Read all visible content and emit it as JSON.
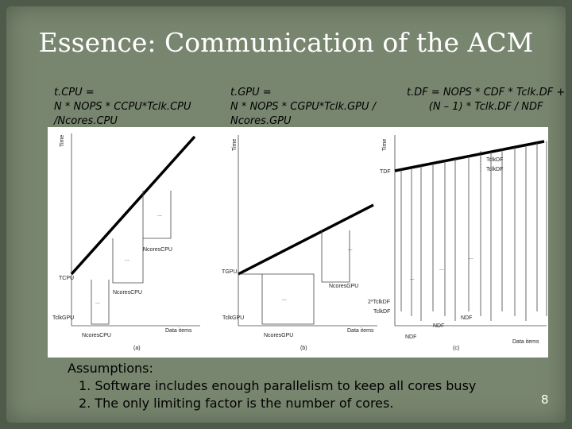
{
  "title": "Essence: Communication of the ACM",
  "formulas": [
    {
      "lines": [
        "t.CPU =",
        "N * NOPS * CCPU*Tclk.CPU",
        "/Ncores.CPU"
      ]
    },
    {
      "lines": [
        "t.GPU =",
        "N * NOPS * CGPU*Tclk.GPU /",
        "Ncores.GPU"
      ]
    },
    {
      "lines": [
        "t.DF =  NOPS * CDF * Tclk.DF +",
        "(N – 1) * Tclk.DF / NDF"
      ]
    }
  ],
  "figure": {
    "panels": [
      {
        "time": "Time",
        "x_axis": "Data items",
        "caption": "(a)",
        "t_label": "TCPU",
        "clk_label": "TclkGPU",
        "n_label": "NcoresCPU",
        "dots": "..."
      },
      {
        "time": "Time",
        "x_axis": "Data items",
        "caption": "(b)",
        "t_label": "TGPU",
        "clk_label": "TclkGPU",
        "n_label": "NcoresGPU",
        "dots": "..."
      },
      {
        "time": "Time",
        "x_axis": "Data items",
        "caption": "(c)",
        "t_label": "TDF",
        "clk_label": "TclkDF",
        "two_clk_label": "2*TclkDF",
        "n_label": "NDF",
        "dots": "..."
      }
    ]
  },
  "assumptions": {
    "heading": "Assumptions:",
    "items": [
      "1. Software includes enough parallelism to keep all cores busy",
      "2. The only limiting factor is the number of cores."
    ]
  },
  "page_number": "8"
}
